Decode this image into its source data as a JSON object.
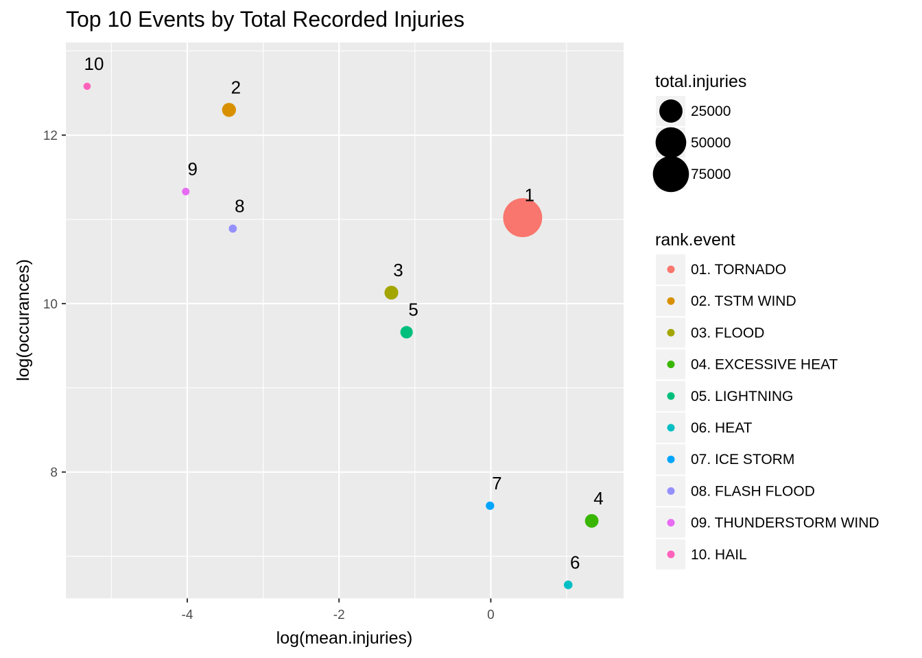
{
  "chart_data": {
    "type": "scatter",
    "title": "Top 10 Events by Total Recorded Injuries",
    "xlabel": "log(mean.injuries)",
    "ylabel": "log(occurances)",
    "xlim": [
      -5.6,
      1.75
    ],
    "ylim": [
      6.5,
      13.1
    ],
    "x_ticks": [
      {
        "value": -4,
        "label": "-4"
      },
      {
        "value": -2,
        "label": "-2"
      },
      {
        "value": 0,
        "label": "0"
      }
    ],
    "y_ticks": [
      {
        "value": 8,
        "label": "8"
      },
      {
        "value": 10,
        "label": "10"
      },
      {
        "value": 12,
        "label": "12"
      }
    ],
    "grid": true,
    "legend_position": "right",
    "points": [
      {
        "label": "1",
        "event": "01. TORNADO",
        "x": 0.42,
        "y": 11.02,
        "total_injuries": 91346,
        "color": "#F8766D"
      },
      {
        "label": "2",
        "event": "02. TSTM WIND",
        "x": -3.45,
        "y": 12.3,
        "total_injuries": 6957,
        "color": "#D89000"
      },
      {
        "label": "3",
        "event": "03. FLOOD",
        "x": -1.31,
        "y": 10.13,
        "total_injuries": 6789,
        "color": "#A3A500"
      },
      {
        "label": "4",
        "event": "04. EXCESSIVE HEAT",
        "x": 1.33,
        "y": 7.42,
        "total_injuries": 6525,
        "color": "#39B600"
      },
      {
        "label": "5",
        "event": "05. LIGHTNING",
        "x": -1.11,
        "y": 9.66,
        "total_injuries": 5230,
        "color": "#00BF7D"
      },
      {
        "label": "6",
        "event": "06. HEAT",
        "x": 1.02,
        "y": 6.66,
        "total_injuries": 2100,
        "color": "#00BFC4"
      },
      {
        "label": "7",
        "event": "07. ICE STORM",
        "x": -0.01,
        "y": 7.6,
        "total_injuries": 1975,
        "color": "#00A5FF"
      },
      {
        "label": "8",
        "event": "08. FLASH FLOOD",
        "x": -3.4,
        "y": 10.89,
        "total_injuries": 1777,
        "color": "#9590FF"
      },
      {
        "label": "9",
        "event": "09. THUNDERSTORM WIND",
        "x": -4.02,
        "y": 11.33,
        "total_injuries": 1488,
        "color": "#E76BF3"
      },
      {
        "label": "10",
        "event": "10. HAIL",
        "x": -5.32,
        "y": 12.58,
        "total_injuries": 1361,
        "color": "#FF62BC"
      }
    ],
    "size_legend": {
      "title": "total.injuries",
      "entries": [
        {
          "value": 25000,
          "label": "25000"
        },
        {
          "value": 50000,
          "label": "50000"
        },
        {
          "value": 75000,
          "label": "75000"
        }
      ]
    },
    "color_legend": {
      "title": "rank.event",
      "entries": [
        {
          "label": "01. TORNADO",
          "color": "#F8766D"
        },
        {
          "label": "02. TSTM WIND",
          "color": "#D89000"
        },
        {
          "label": "03. FLOOD",
          "color": "#A3A500"
        },
        {
          "label": "04. EXCESSIVE HEAT",
          "color": "#39B600"
        },
        {
          "label": "05. LIGHTNING",
          "color": "#00BF7D"
        },
        {
          "label": "06. HEAT",
          "color": "#00BFC4"
        },
        {
          "label": "07. ICE STORM",
          "color": "#00A5FF"
        },
        {
          "label": "08. FLASH FLOOD",
          "color": "#9590FF"
        },
        {
          "label": "09. THUNDERSTORM WIND",
          "color": "#E76BF3"
        },
        {
          "label": "10. HAIL",
          "color": "#FF62BC"
        }
      ]
    }
  }
}
